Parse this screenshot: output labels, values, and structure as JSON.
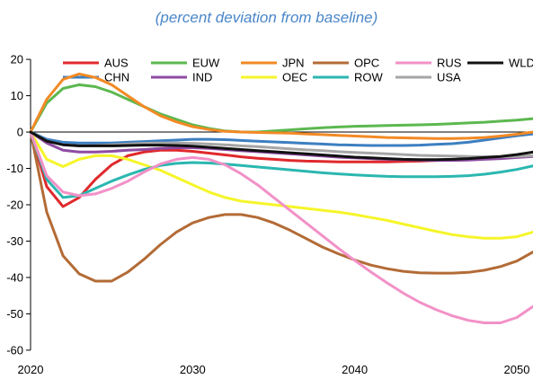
{
  "subtitle": "(percent deviation from baseline)",
  "chart_data": {
    "type": "line",
    "subtitle": "(percent deviation from baseline)",
    "xlim": [
      2020,
      2051
    ],
    "ylim": [
      -62,
      22
    ],
    "xticks": [
      2020,
      2030,
      2040,
      2050
    ],
    "yticks": [
      20,
      10,
      0,
      -10,
      -20,
      -30,
      -40,
      -50,
      -60
    ],
    "zero_line": true,
    "grid": false,
    "legend": "top",
    "x": [
      2020,
      2021,
      2022,
      2023,
      2024,
      2025,
      2026,
      2027,
      2028,
      2029,
      2030,
      2031,
      2032,
      2033,
      2034,
      2035,
      2036,
      2037,
      2038,
      2039,
      2040,
      2041,
      2042,
      2043,
      2044,
      2045,
      2046,
      2047,
      2048,
      2049,
      2050,
      2051
    ],
    "series": [
      {
        "name": "AUS",
        "color": "#e0292c",
        "values": [
          0,
          -15,
          -20.5,
          -18,
          -13,
          -9,
          -6.5,
          -5.5,
          -5,
          -5,
          -5.3,
          -5.8,
          -6.3,
          -6.8,
          -7.2,
          -7.5,
          -7.8,
          -8,
          -8.1,
          -8.2,
          -8.2,
          -8.2,
          -8.2,
          -8.1,
          -8,
          -7.8,
          -7.6,
          -7.4,
          -7.2,
          -7,
          -6.8,
          -6.5
        ]
      },
      {
        "name": "CHN",
        "color": "#3c7fc1",
        "values": [
          0,
          -2,
          -2.8,
          -3,
          -3,
          -3,
          -2.8,
          -2.6,
          -2.4,
          -2.2,
          -2,
          -2,
          -2.1,
          -2.3,
          -2.5,
          -2.7,
          -2.9,
          -3.1,
          -3.3,
          -3.5,
          -3.6,
          -3.7,
          -3.7,
          -3.7,
          -3.6,
          -3.4,
          -3.2,
          -2.8,
          -2.2,
          -1.6,
          -1,
          -0.5
        ]
      },
      {
        "name": "EUW",
        "color": "#5cb84f",
        "values": [
          0,
          8,
          12,
          13,
          12.5,
          11,
          9,
          7,
          5,
          3.5,
          2,
          1,
          0.3,
          0,
          0,
          0.3,
          0.6,
          0.9,
          1.2,
          1.4,
          1.6,
          1.7,
          1.8,
          1.9,
          2,
          2.1,
          2.3,
          2.5,
          2.7,
          3,
          3.3,
          3.7
        ]
      },
      {
        "name": "IND",
        "color": "#8e4ba3",
        "values": [
          0,
          -3,
          -5,
          -5.5,
          -5.5,
          -5.3,
          -5,
          -4.8,
          -4.5,
          -4.3,
          -4.3,
          -4.5,
          -4.8,
          -5.1,
          -5.4,
          -5.7,
          -6,
          -6.3,
          -6.6,
          -6.9,
          -7.1,
          -7.3,
          -7.5,
          -7.6,
          -7.7,
          -7.8,
          -7.8,
          -7.7,
          -7.5,
          -7.3,
          -7,
          -6.7
        ]
      },
      {
        "name": "JPN",
        "color": "#f28a25",
        "values": [
          0,
          9,
          14.5,
          16,
          15,
          13,
          10,
          7,
          4.5,
          2.8,
          1.5,
          0.7,
          0.2,
          0,
          -0.1,
          -0.2,
          -0.3,
          -0.5,
          -0.7,
          -0.9,
          -1.1,
          -1.3,
          -1.5,
          -1.6,
          -1.7,
          -1.8,
          -1.8,
          -1.7,
          -1.5,
          -1.1,
          -0.6,
          0
        ]
      },
      {
        "name": "OEC",
        "color": "#f5f52a",
        "values": [
          0,
          -7.5,
          -9.5,
          -7.5,
          -6.5,
          -6.5,
          -7.5,
          -9,
          -10.5,
          -12.5,
          -14.5,
          -16.5,
          -18,
          -19,
          -19.5,
          -20,
          -20.5,
          -21,
          -21.5,
          -22,
          -22.7,
          -23.5,
          -24.3,
          -25.3,
          -26.3,
          -27.3,
          -28.2,
          -28.8,
          -29.2,
          -29.2,
          -28.8,
          -27.5
        ]
      },
      {
        "name": "OPC",
        "color": "#b36b36",
        "values": [
          0,
          -22,
          -34,
          -39,
          -41,
          -41,
          -38.5,
          -35,
          -31,
          -27.5,
          -25,
          -23.5,
          -22.7,
          -22.7,
          -23.5,
          -25,
          -27,
          -29.3,
          -31.6,
          -33.5,
          -35.2,
          -36.6,
          -37.6,
          -38.3,
          -38.7,
          -38.8,
          -38.8,
          -38.6,
          -38,
          -37,
          -35.5,
          -33
        ]
      },
      {
        "name": "ROW",
        "color": "#2bb7b0",
        "values": [
          0,
          -13,
          -18,
          -17.5,
          -15.5,
          -13.5,
          -11.8,
          -10.3,
          -9.2,
          -8.6,
          -8.4,
          -8.5,
          -8.8,
          -9.2,
          -9.6,
          -10,
          -10.4,
          -10.8,
          -11.2,
          -11.5,
          -11.8,
          -12,
          -12.2,
          -12.3,
          -12.3,
          -12.3,
          -12.2,
          -12,
          -11.6,
          -11,
          -10.3,
          -9.3
        ]
      },
      {
        "name": "RUS",
        "color": "#f291c7",
        "values": [
          0,
          -12,
          -16.5,
          -17.5,
          -17,
          -15.5,
          -13.5,
          -11,
          -8.8,
          -7.5,
          -7,
          -7.5,
          -9,
          -11.5,
          -14.5,
          -18,
          -21.5,
          -25,
          -28.5,
          -32,
          -35.3,
          -38.5,
          -41.5,
          -44.3,
          -46.8,
          -48.8,
          -50.5,
          -51.8,
          -52.5,
          -52.5,
          -51,
          -48
        ]
      },
      {
        "name": "USA",
        "color": "#a6a6a6",
        "values": [
          0,
          -2.5,
          -3.5,
          -3.8,
          -3.7,
          -3.5,
          -3.3,
          -3.1,
          -3,
          -3,
          -3.1,
          -3.3,
          -3.5,
          -3.8,
          -4,
          -4.3,
          -4.6,
          -4.9,
          -5.1,
          -5.4,
          -5.6,
          -5.8,
          -6,
          -6.2,
          -6.4,
          -6.5,
          -6.6,
          -6.7,
          -6.8,
          -6.8,
          -6.7,
          -6.5
        ]
      },
      {
        "name": "WLD",
        "color": "#111111",
        "values": [
          0,
          -2.5,
          -3.5,
          -3.8,
          -3.8,
          -3.8,
          -3.7,
          -3.6,
          -3.6,
          -3.7,
          -3.9,
          -4.2,
          -4.5,
          -4.8,
          -5.1,
          -5.4,
          -5.7,
          -6,
          -6.3,
          -6.6,
          -6.9,
          -7.1,
          -7.3,
          -7.5,
          -7.6,
          -7.6,
          -7.5,
          -7.3,
          -7,
          -6.7,
          -6.2,
          -5.5
        ]
      }
    ]
  }
}
